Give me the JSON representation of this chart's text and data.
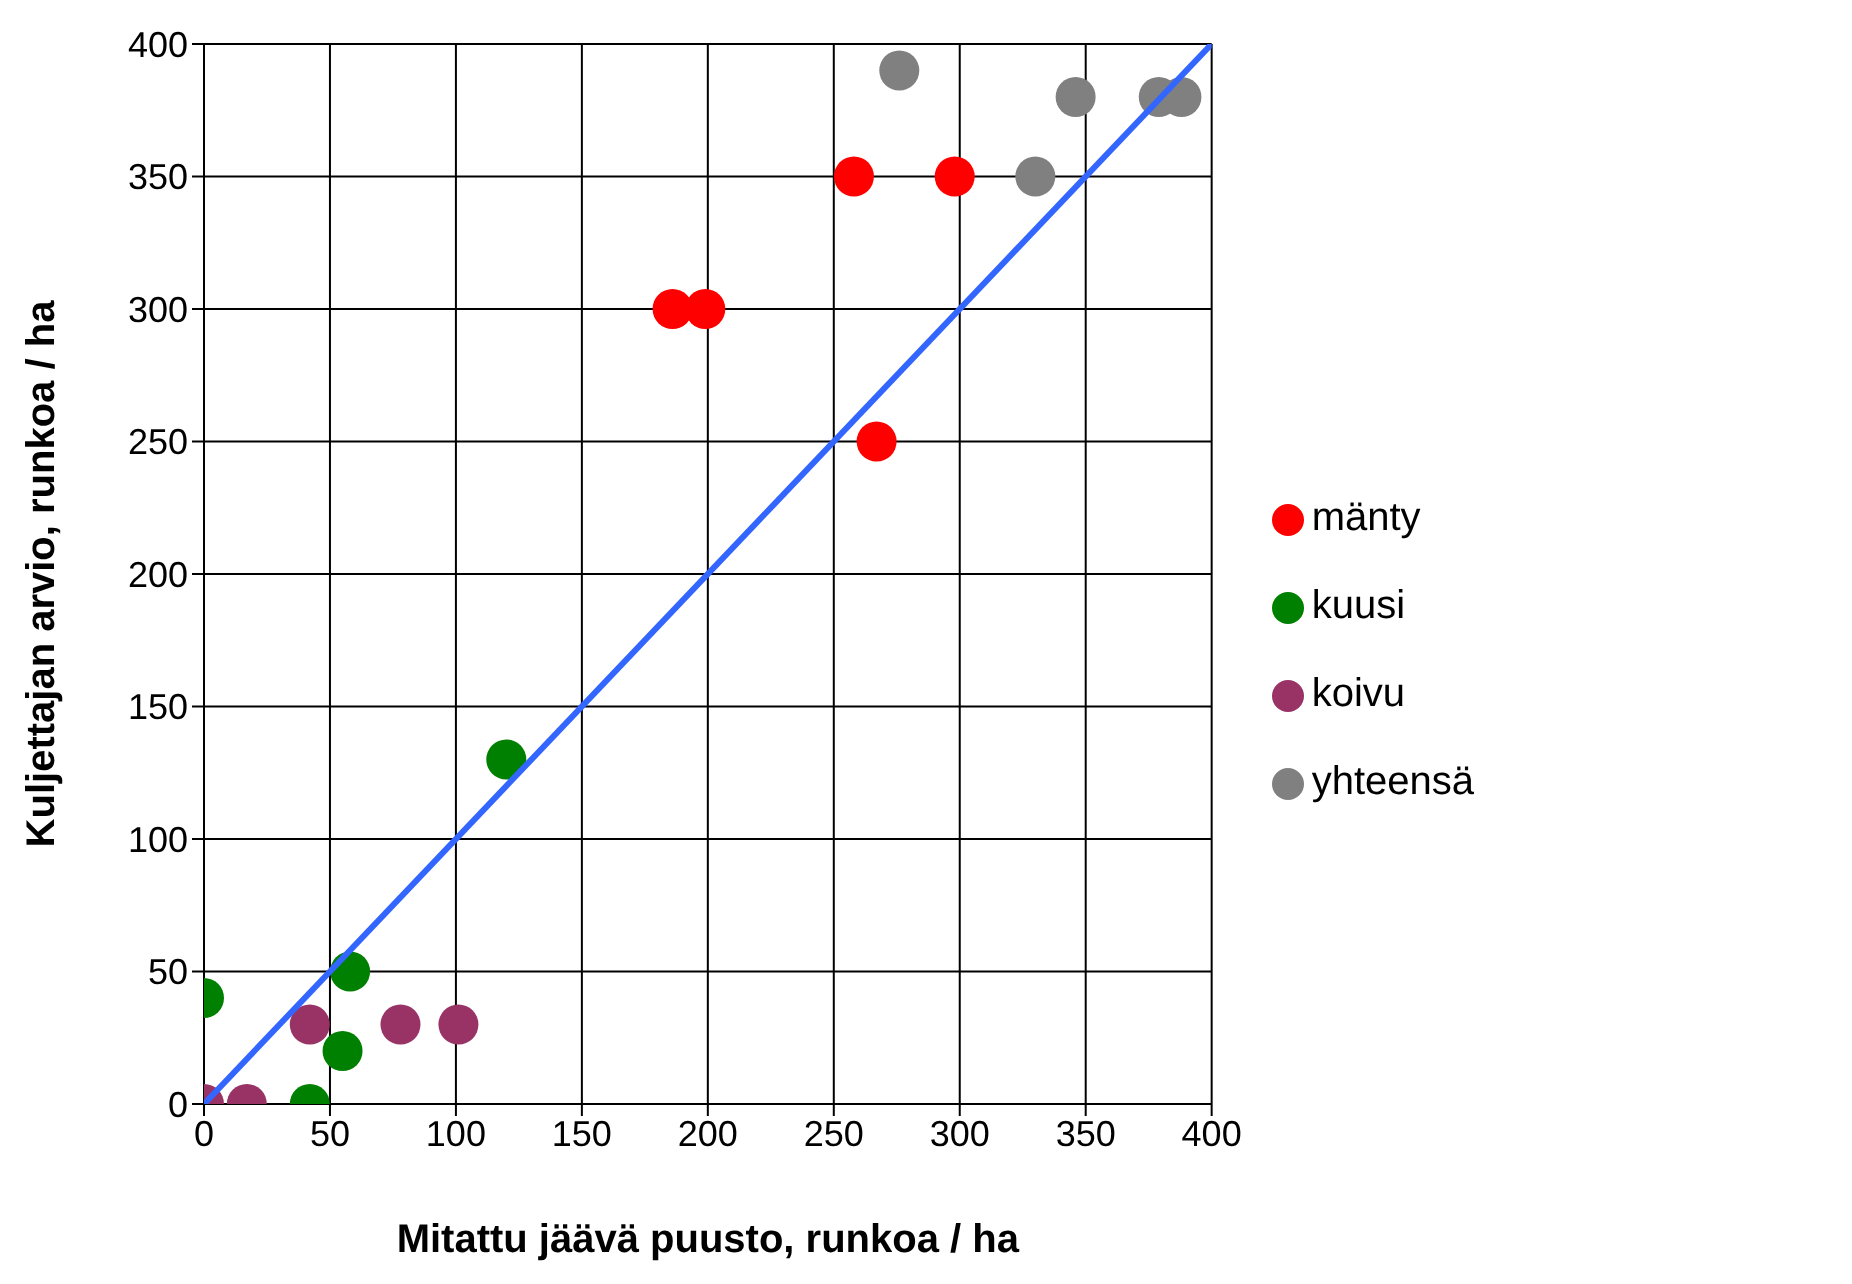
{
  "chart_data": {
    "type": "scatter",
    "xlabel": "Mitattu jäävä puusto, runkoa / ha",
    "ylabel": "Kuljettajan arvio, runkoa / ha",
    "xlim": [
      0,
      400
    ],
    "ylim": [
      0,
      400
    ],
    "xticks": [
      0,
      50,
      100,
      150,
      200,
      250,
      300,
      350,
      400
    ],
    "yticks": [
      0,
      50,
      100,
      150,
      200,
      250,
      300,
      350,
      400
    ],
    "grid": true,
    "legend": "right",
    "marker": "circle",
    "series": [
      {
        "name": "mänty",
        "color": "#ff0000",
        "x": [
          186,
          199,
          258,
          298,
          267
        ],
        "values": [
          300,
          300,
          350,
          350,
          250
        ]
      },
      {
        "name": "kuusi",
        "color": "#008000",
        "x": [
          0,
          42,
          55,
          58,
          120
        ],
        "values": [
          40,
          0,
          20,
          50,
          130
        ]
      },
      {
        "name": "koivu",
        "color": "#993366",
        "x": [
          0,
          17,
          42,
          78,
          101
        ],
        "values": [
          0,
          0,
          30,
          30,
          30
        ]
      },
      {
        "name": "yhteensä",
        "color": "#808080",
        "x": [
          276,
          330,
          346,
          379,
          388
        ],
        "values": [
          390,
          350,
          380,
          380,
          380
        ]
      },
      {
        "type": "line",
        "marker": "none",
        "color": "#3366ff",
        "x": [
          0,
          400
        ],
        "values": [
          0,
          400
        ]
      }
    ]
  }
}
